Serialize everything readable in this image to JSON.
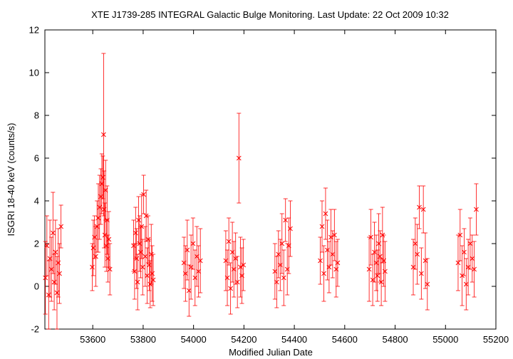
{
  "chart_data": {
    "type": "scatter",
    "title": "XTE J1739-285   INTEGRAL Galactic Bulge Monitoring.  Last Update: 22 Oct 2009 10:32",
    "xlabel": "Modified Julian Date",
    "ylabel": "ISGRI 18-40 keV (counts/s)",
    "xlim": [
      53410,
      55200
    ],
    "ylim": [
      -2,
      12
    ],
    "x_ticks": [
      53600,
      53800,
      54000,
      54200,
      54400,
      54600,
      54800,
      55000,
      55200
    ],
    "y_ticks": [
      -2,
      0,
      2,
      4,
      6,
      8,
      10,
      12
    ],
    "grid": false,
    "legend": "none",
    "marker": "x",
    "error_bars": true,
    "color": "#ff0000",
    "series": [
      {
        "x": [
          53412,
          53418,
          53425,
          53430,
          53436,
          53442,
          53447,
          53452,
          53458,
          53463,
          53468,
          53474,
          53598,
          53602,
          53607,
          53612,
          53617,
          53622,
          53627,
          53632,
          53636,
          53640,
          53643,
          53645,
          53648,
          53651,
          53654,
          53657,
          53660,
          53664,
          53668,
          53762,
          53766,
          53770,
          53774,
          53778,
          53782,
          53786,
          53790,
          53794,
          53798,
          53802,
          53808,
          53812,
          53816,
          53820,
          53824,
          53828,
          53832,
          53836,
          53840,
          53962,
          53968,
          53975,
          53982,
          53990,
          53998,
          54006,
          54013,
          54020,
          54027,
          54128,
          54134,
          54140,
          54147,
          54154,
          54160,
          54167,
          54174,
          54180,
          54186,
          54192,
          54198,
          54323,
          54330,
          54337,
          54344,
          54351,
          54358,
          54365,
          54372,
          54378,
          54384,
          54503,
          54510,
          54517,
          54524,
          54531,
          54538,
          54545,
          54552,
          54559,
          54566,
          54572,
          54697,
          54704,
          54711,
          54718,
          54725,
          54730,
          54735,
          54740,
          54745,
          54750,
          54755,
          54760,
          54872,
          54880,
          54888,
          54896,
          54904,
          54912,
          54920,
          54928,
          55050,
          55058,
          55066,
          55074,
          55082,
          55090,
          55098,
          55106,
          55114,
          55122
        ],
        "y": [
          0.4,
          1.9,
          -0.4,
          1.3,
          0.8,
          2.5,
          0.2,
          1.6,
          -0.3,
          1.1,
          0.6,
          2.8,
          0.9,
          1.8,
          2.3,
          1.4,
          2.8,
          3.2,
          3.7,
          4.2,
          4.8,
          5.1,
          7.1,
          3.6,
          2.4,
          4.5,
          1.9,
          3.1,
          1.3,
          2.2,
          0.8,
          1.9,
          0.7,
          2.5,
          1.3,
          0.2,
          3.1,
          2.0,
          1.6,
          2.8,
          0.9,
          4.3,
          1.4,
          3.3,
          0.5,
          2.2,
          1.0,
          0.1,
          1.5,
          0.6,
          0.3,
          1.1,
          0.6,
          1.7,
          -0.2,
          0.9,
          2.0,
          0.4,
          1.4,
          0.7,
          1.2,
          1.2,
          0.4,
          2.1,
          -0.1,
          1.6,
          0.8,
          1.3,
          0.2,
          6.0,
          0.9,
          0.5,
          1.0,
          0.7,
          0.2,
          1.5,
          1.0,
          2.0,
          0.4,
          3.1,
          0.8,
          1.9,
          2.7,
          1.2,
          2.8,
          0.6,
          3.4,
          1.7,
          0.9,
          2.3,
          1.5,
          2.4,
          0.8,
          1.1,
          0.8,
          2.3,
          0.3,
          1.6,
          1.1,
          0.5,
          2.0,
          1.4,
          0.2,
          2.4,
          1.2,
          0.7,
          0.9,
          2.0,
          1.5,
          3.7,
          0.6,
          3.6,
          1.2,
          0.1,
          1.1,
          2.4,
          0.5,
          1.6,
          0.1,
          0.9,
          2.0,
          1.3,
          0.8,
          3.6
        ],
        "err": [
          1.7,
          1.4,
          1.6,
          1.8,
          1.5,
          1.9,
          1.3,
          1.5,
          1.7,
          1.6,
          1.4,
          1.0,
          1.1,
          1.3,
          1.0,
          1.4,
          1.2,
          1.6,
          1.5,
          1.3,
          1.4,
          1.0,
          3.8,
          1.8,
          1.5,
          1.4,
          1.2,
          1.6,
          1.1,
          1.3,
          1.2,
          1.2,
          1.3,
          1.2,
          1.4,
          1.3,
          1.1,
          1.3,
          1.2,
          1.5,
          1.3,
          0.9,
          1.4,
          1.2,
          1.3,
          1.1,
          1.2,
          1.1,
          1.4,
          1.3,
          1.2,
          1.2,
          1.3,
          1.4,
          1.2,
          1.5,
          1.2,
          1.3,
          1.4,
          1.2,
          1.5,
          1.4,
          1.3,
          1.1,
          1.2,
          1.4,
          1.3,
          1.2,
          1.2,
          2.1,
          1.4,
          1.3,
          1.2,
          1.3,
          1.2,
          1.1,
          1.2,
          1.4,
          1.3,
          1.0,
          1.2,
          1.3,
          1.3,
          1.1,
          1.2,
          1.3,
          1.2,
          1.4,
          1.2,
          1.3,
          1.1,
          1.2,
          1.3,
          1.1,
          1.5,
          1.3,
          1.2,
          1.4,
          1.3,
          1.2,
          1.4,
          1.2,
          1.1,
          1.3,
          1.2,
          1.4,
          1.3,
          1.2,
          1.4,
          1.0,
          1.2,
          1.1,
          1.3,
          1.2,
          1.3,
          1.2,
          1.4,
          1.1,
          1.2,
          1.3,
          1.2,
          1.1,
          1.3,
          1.2
        ]
      }
    ]
  }
}
